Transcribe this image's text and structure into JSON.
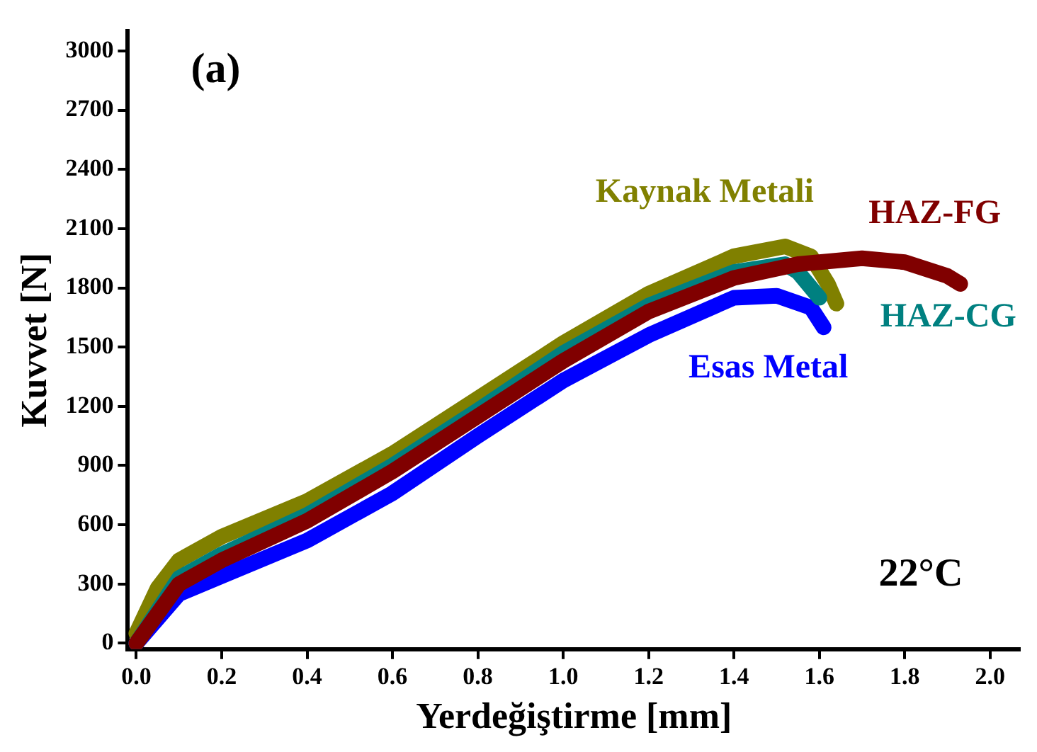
{
  "chart_data": {
    "type": "line",
    "xlabel": "Yerdeğiştirme [mm]",
    "ylabel": "Kuvvet [N]",
    "annotations": [
      "(a)",
      "22°C"
    ],
    "xlim": [
      -0.02,
      2.07
    ],
    "xticks": [
      {
        "value": 0,
        "label": "0.0"
      },
      {
        "value": 0.2,
        "label": "0.2"
      },
      {
        "value": 0.4,
        "label": "0.4"
      },
      {
        "value": 0.6,
        "label": "0.6"
      },
      {
        "value": 0.8,
        "label": "0.8"
      },
      {
        "value": 1,
        "label": "1.0"
      },
      {
        "value": 1.2,
        "label": "1.2"
      },
      {
        "value": 1.4,
        "label": "1.4"
      },
      {
        "value": 1.6,
        "label": "1.6"
      },
      {
        "value": 1.8,
        "label": "1.8"
      },
      {
        "value": 2,
        "label": "2.0"
      }
    ],
    "ylim": [
      -30,
      3100
    ],
    "yticks": [
      0,
      300,
      600,
      900,
      1200,
      1500,
      1800,
      2100,
      2400,
      2700,
      3000
    ],
    "grid": false,
    "legend": false,
    "marker": "none",
    "line_style": "solid",
    "series": [
      {
        "name": "HAZ-FG",
        "color": "#800000",
        "x": [
          0,
          0.1,
          0.2,
          0.4,
          0.6,
          0.8,
          1.0,
          1.2,
          1.4,
          1.55,
          1.7,
          1.8,
          1.9,
          1.93
        ],
        "values": [
          0,
          300,
          420,
          620,
          870,
          1150,
          1430,
          1680,
          1850,
          1920,
          1950,
          1930,
          1860,
          1820
        ]
      },
      {
        "name": "HAZ-CG",
        "color": "#008080",
        "x": [
          0,
          0.1,
          0.2,
          0.4,
          0.6,
          0.8,
          1.0,
          1.2,
          1.4,
          1.52,
          1.55,
          1.6
        ],
        "values": [
          0,
          330,
          450,
          650,
          900,
          1180,
          1470,
          1710,
          1880,
          1920,
          1880,
          1750
        ]
      },
      {
        "name": "Esas Metal",
        "color": "#0000ff",
        "x": [
          0,
          0.1,
          0.2,
          0.4,
          0.6,
          0.8,
          1.0,
          1.2,
          1.4,
          1.5,
          1.58,
          1.61
        ],
        "values": [
          0,
          250,
          340,
          520,
          760,
          1050,
          1330,
          1560,
          1750,
          1760,
          1700,
          1600
        ]
      },
      {
        "name": "Kaynak Metali",
        "color": "#808000",
        "x": [
          0,
          0.05,
          0.1,
          0.2,
          0.4,
          0.6,
          0.8,
          1.0,
          1.2,
          1.4,
          1.52,
          1.58,
          1.62,
          1.64
        ],
        "values": [
          50,
          280,
          420,
          540,
          720,
          960,
          1240,
          1520,
          1770,
          1960,
          2010,
          1960,
          1820,
          1720
        ]
      }
    ]
  }
}
